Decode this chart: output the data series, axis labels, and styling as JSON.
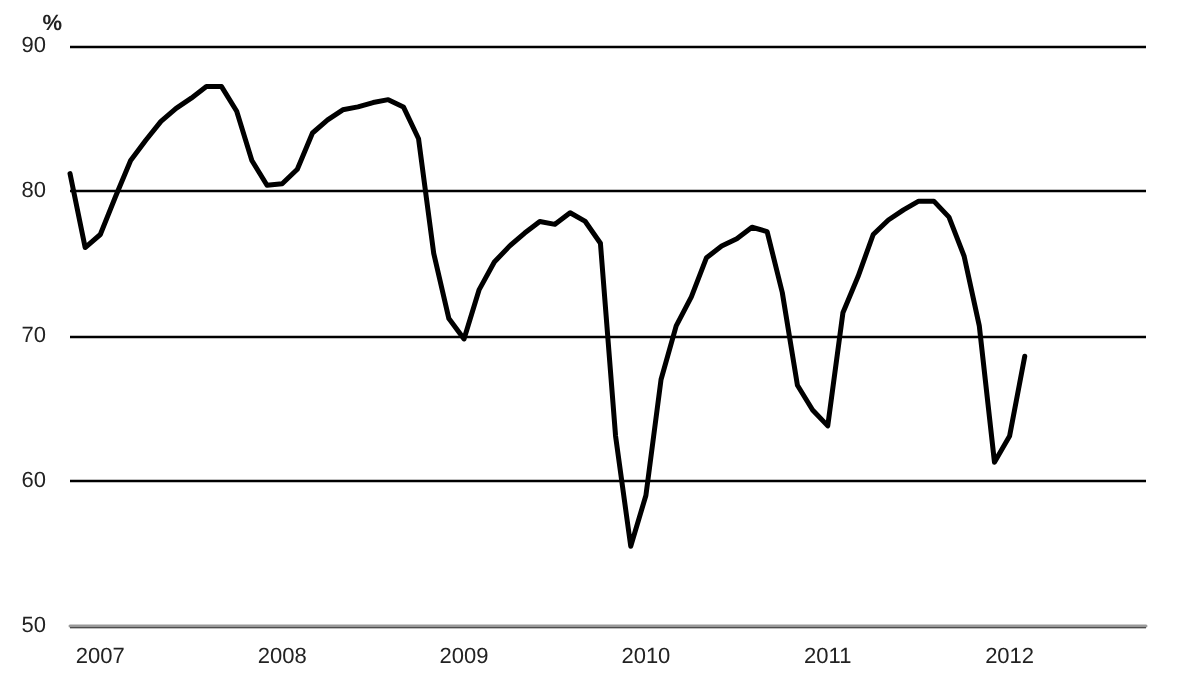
{
  "chart_data": {
    "type": "line",
    "ylabel": "%",
    "categories": [
      null,
      null,
      "2007",
      null,
      null,
      null,
      null,
      null,
      null,
      null,
      null,
      null,
      null,
      null,
      "2008",
      null,
      null,
      null,
      null,
      null,
      null,
      null,
      null,
      null,
      null,
      null,
      "2009",
      null,
      null,
      null,
      null,
      null,
      null,
      null,
      null,
      null,
      null,
      null,
      "2010",
      null,
      null,
      null,
      null,
      null,
      null,
      null,
      null,
      null,
      null,
      null,
      "2011",
      null,
      null,
      null,
      null,
      null,
      null,
      null,
      null,
      null,
      null,
      null,
      "2012",
      null,
      null,
      null,
      null,
      null,
      null,
      null,
      null,
      null
    ],
    "series": [
      {
        "color": "#000000",
        "values": [
          81.2,
          76.1,
          77.0,
          79.6,
          82.1,
          83.5,
          84.8,
          85.7,
          86.4,
          87.2,
          87.2,
          85.5,
          82.1,
          80.4,
          80.5,
          81.5,
          84.0,
          84.9,
          85.6,
          85.8,
          86.1,
          86.3,
          85.8,
          83.6,
          75.7,
          71.2,
          69.8,
          73.2,
          75.1,
          76.2,
          77.1,
          77.9,
          77.7,
          78.5,
          77.9,
          76.4,
          63.1,
          55.5,
          59.0,
          67.0,
          70.7,
          72.7,
          75.4,
          76.2,
          76.7,
          77.5,
          77.2,
          73.0,
          66.6,
          64.9,
          63.8,
          71.6,
          74.1,
          77.0,
          78.0,
          78.7,
          79.3,
          79.3,
          78.2,
          75.5,
          70.7,
          61.3,
          63.1,
          68.6,
          null,
          null,
          null,
          null,
          null,
          null,
          null,
          null
        ]
      }
    ],
    "ylim": [
      50,
      90
    ],
    "yticks": [
      50,
      60,
      70,
      80,
      90
    ],
    "grid": "y",
    "marker": "none",
    "line_style": "solid"
  }
}
